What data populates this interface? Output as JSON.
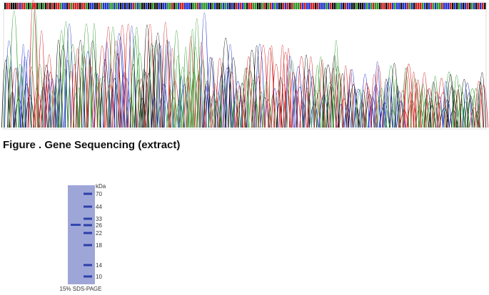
{
  "figure": {
    "caption": "Figure . Gene Sequencing (extract)"
  },
  "gel": {
    "unit": "kDa",
    "markers": [
      70,
      44,
      33,
      26,
      22,
      18,
      14,
      10
    ],
    "label": "15% SDS-PAGE"
  }
}
